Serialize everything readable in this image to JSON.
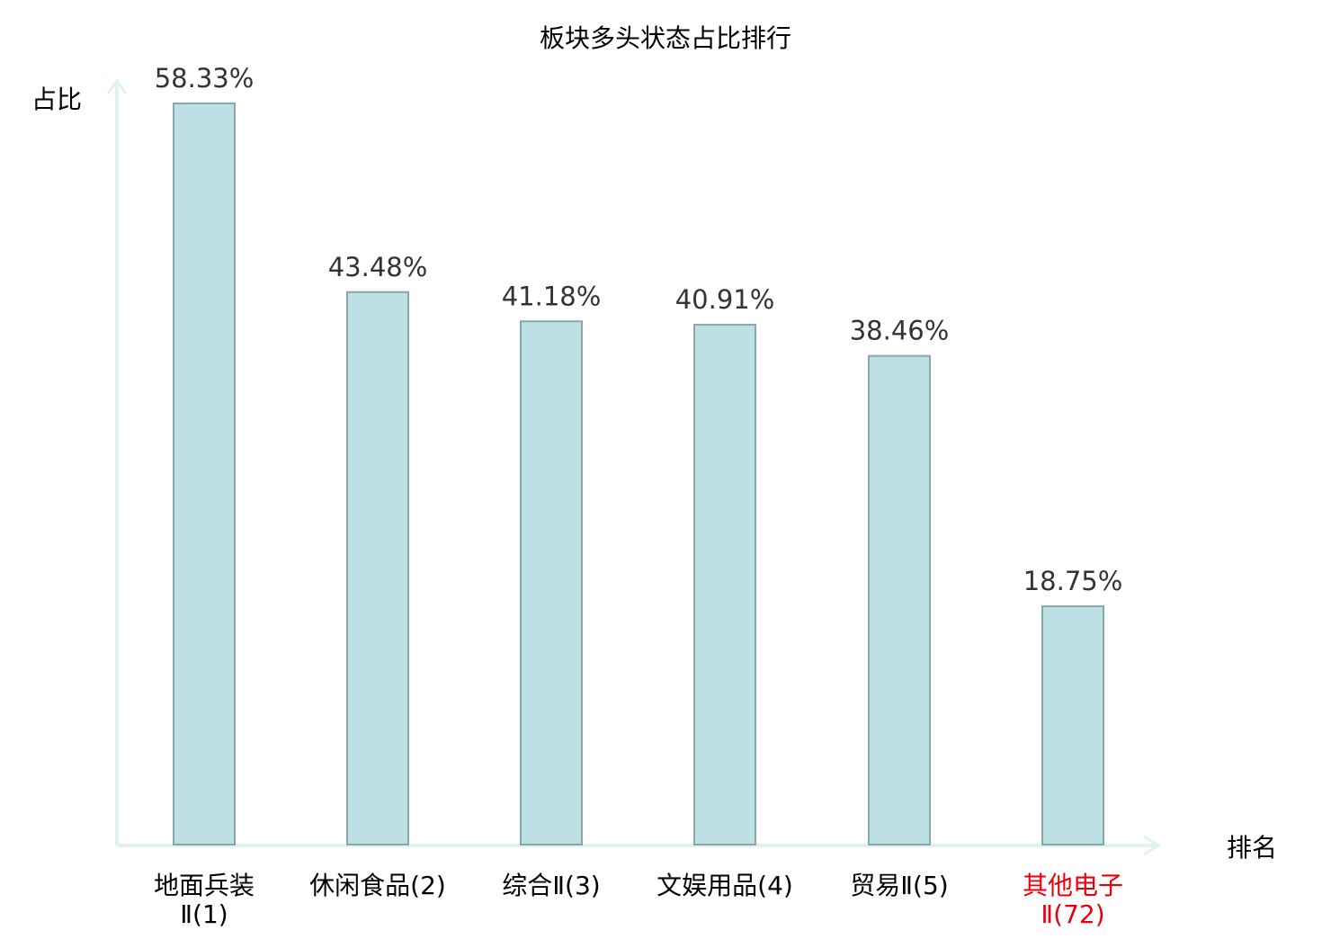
{
  "chart_data": {
    "type": "bar",
    "title": "板块多头状态占比排行",
    "xlabel": "排名",
    "ylabel": "占比",
    "ylim": [
      0,
      60
    ],
    "grid": false,
    "categories": [
      {
        "lines": [
          "地面兵装",
          "Ⅱ(1)"
        ],
        "highlight": false
      },
      {
        "lines": [
          "休闲食品(2)"
        ],
        "highlight": false
      },
      {
        "lines": [
          "综合Ⅱ(3)"
        ],
        "highlight": false
      },
      {
        "lines": [
          "文娱用品(4)"
        ],
        "highlight": false
      },
      {
        "lines": [
          "贸易Ⅱ(5)"
        ],
        "highlight": false
      },
      {
        "lines": [
          "其他电子",
          "Ⅱ(72)"
        ],
        "highlight": true
      }
    ],
    "values": [
      58.33,
      43.48,
      41.18,
      40.91,
      38.46,
      18.75
    ],
    "value_labels": [
      "58.33%",
      "43.48%",
      "41.18%",
      "40.91%",
      "38.46%",
      "18.75%"
    ],
    "colors": {
      "bar_fill": "#bce0e3",
      "bar_stroke": "#88a7a8",
      "axis": "#dff2ef",
      "highlight": "#e8000b",
      "text": "#000000",
      "value_text": "#333333"
    }
  }
}
